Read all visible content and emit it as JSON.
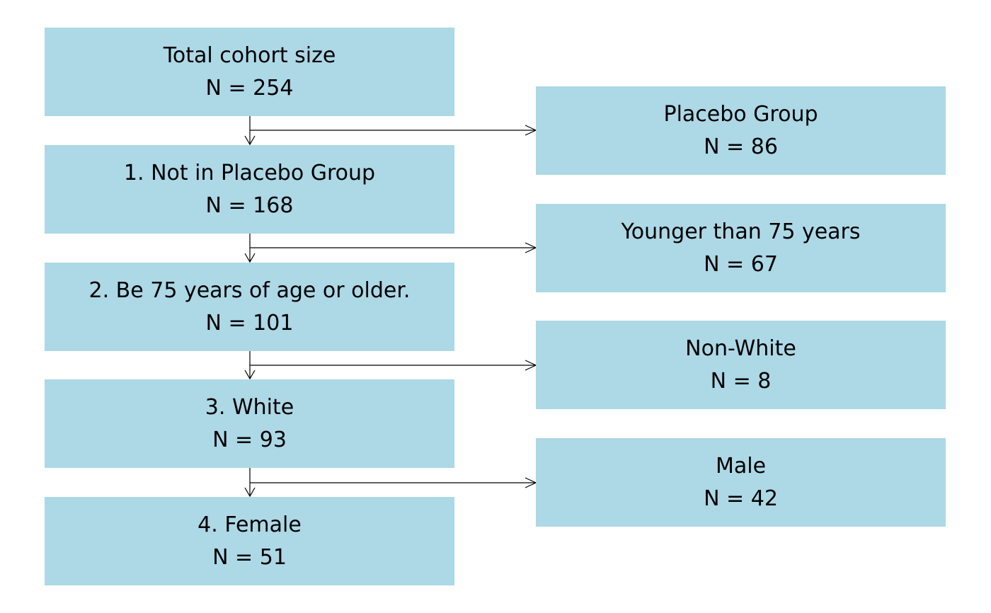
{
  "flowchart": {
    "main_steps": [
      {
        "label": "Total cohort size",
        "count": "N = 254"
      },
      {
        "label": "1. Not in Placebo Group",
        "count": "N = 168"
      },
      {
        "label": "2. Be 75 years of age or older.",
        "count": "N = 101"
      },
      {
        "label": "3. White",
        "count": "N = 93"
      },
      {
        "label": "4. Female",
        "count": "N = 51"
      }
    ],
    "exclusions": [
      {
        "label": "Placebo Group",
        "count": "N = 86"
      },
      {
        "label": "Younger than 75 years",
        "count": "N = 67"
      },
      {
        "label": "Non-White",
        "count": "N = 8"
      },
      {
        "label": "Male",
        "count": "N = 42"
      }
    ],
    "colors": {
      "box_fill": "#add8e6",
      "text": "#000000",
      "arrow": "#000000"
    }
  }
}
